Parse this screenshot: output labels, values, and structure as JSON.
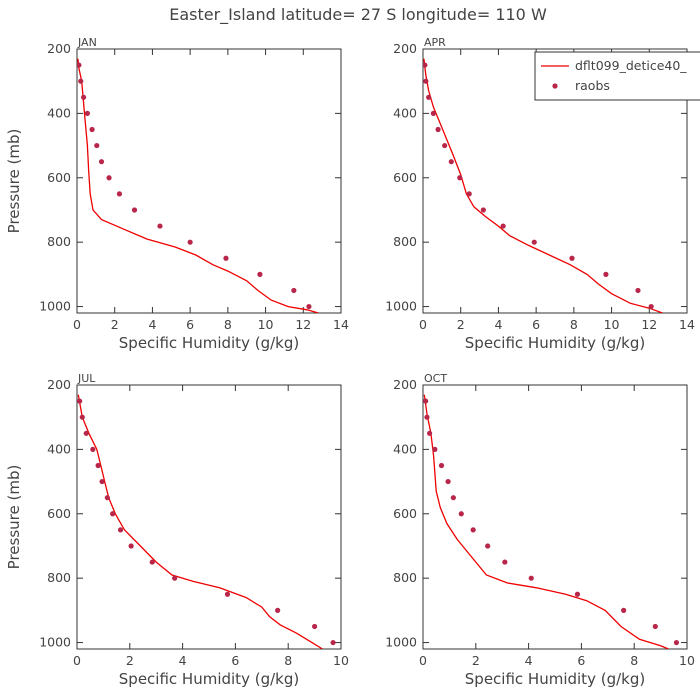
{
  "figure": {
    "title": "Easter_Island  latitude= 27 S longitude= 110 W",
    "colors": {
      "model_line": "#ee0000",
      "obs_points": "#b8264a",
      "axes": "#333333",
      "text": "#444444"
    }
  },
  "chart_data": [
    {
      "type": "line",
      "panel": "JAN",
      "title": "JAN",
      "xlabel": "Specific Humidity (g/kg)",
      "ylabel": "Pressure (mb)",
      "xlim": [
        0,
        14
      ],
      "ylim": [
        200,
        1020
      ],
      "y_inverted": true,
      "xticks": [
        0,
        2,
        4,
        6,
        8,
        10,
        12,
        14
      ],
      "yticks": [
        200,
        400,
        600,
        800,
        1000
      ],
      "legend": null,
      "series": [
        {
          "name": "dflt099_detice40_",
          "kind": "line",
          "x": [
            0.05,
            0.1,
            0.25,
            0.4,
            0.55,
            0.62,
            0.7,
            0.85,
            1.3,
            2.5,
            3.7,
            5.2,
            6.3,
            7.2,
            8.0,
            9.0,
            9.6,
            10.3,
            11.2,
            12.2,
            12.8
          ],
          "y": [
            230,
            260,
            300,
            400,
            500,
            580,
            650,
            700,
            730,
            760,
            790,
            815,
            840,
            870,
            890,
            920,
            950,
            980,
            1000,
            1010,
            1020
          ]
        },
        {
          "name": "raobs",
          "kind": "points",
          "x": [
            0.1,
            0.2,
            0.35,
            0.55,
            0.8,
            1.05,
            1.3,
            1.7,
            2.25,
            3.05,
            4.4,
            6.0,
            7.9,
            9.7,
            11.5,
            12.3
          ],
          "y": [
            250,
            300,
            350,
            400,
            450,
            500,
            550,
            600,
            650,
            700,
            750,
            800,
            850,
            900,
            950,
            1000
          ]
        }
      ]
    },
    {
      "type": "line",
      "panel": "APR",
      "title": "APR",
      "xlabel": "Specific Humidity (g/kg)",
      "ylabel": "",
      "xlim": [
        0,
        14
      ],
      "ylim": [
        200,
        1020
      ],
      "y_inverted": true,
      "xticks": [
        0,
        2,
        4,
        6,
        8,
        10,
        12,
        14
      ],
      "yticks": [
        200,
        400,
        600,
        800,
        1000
      ],
      "legend": {
        "position": "top-right",
        "entries": [
          "dflt099_detice40_",
          "raobs"
        ]
      },
      "series": [
        {
          "name": "dflt099_detice40_",
          "kind": "line",
          "x": [
            0.05,
            0.15,
            0.3,
            0.55,
            0.9,
            1.25,
            1.6,
            2.0,
            2.3,
            2.7,
            3.3,
            4.0,
            4.6,
            5.6,
            6.7,
            7.8,
            8.7,
            9.3,
            10.0,
            11.0,
            12.0,
            12.7
          ],
          "y": [
            230,
            280,
            330,
            380,
            430,
            480,
            530,
            590,
            650,
            690,
            720,
            750,
            780,
            810,
            840,
            870,
            900,
            930,
            960,
            990,
            1005,
            1020
          ]
        },
        {
          "name": "raobs",
          "kind": "points",
          "x": [
            0.1,
            0.15,
            0.3,
            0.55,
            0.8,
            1.15,
            1.5,
            1.95,
            2.45,
            3.2,
            4.25,
            5.9,
            7.9,
            9.7,
            11.4,
            12.1
          ],
          "y": [
            250,
            300,
            350,
            400,
            450,
            500,
            550,
            600,
            650,
            700,
            750,
            800,
            850,
            900,
            950,
            1000
          ]
        }
      ]
    },
    {
      "type": "line",
      "panel": "JUL",
      "title": "JUL",
      "xlabel": "Specific Humidity (g/kg)",
      "ylabel": "Pressure (mb)",
      "xlim": [
        0,
        10
      ],
      "ylim": [
        200,
        1020
      ],
      "y_inverted": true,
      "xticks": [
        0,
        2,
        4,
        6,
        8,
        10
      ],
      "yticks": [
        200,
        400,
        600,
        800,
        1000
      ],
      "legend": null,
      "series": [
        {
          "name": "dflt099_detice40_",
          "kind": "line",
          "x": [
            0.05,
            0.2,
            0.45,
            0.75,
            0.9,
            1.05,
            1.2,
            1.45,
            1.8,
            2.4,
            3.0,
            3.6,
            4.4,
            5.4,
            6.4,
            7.0,
            7.3,
            7.7,
            8.3,
            8.9,
            9.3
          ],
          "y": [
            230,
            300,
            350,
            400,
            450,
            500,
            550,
            600,
            650,
            700,
            750,
            790,
            810,
            830,
            860,
            890,
            920,
            945,
            970,
            1000,
            1020
          ]
        },
        {
          "name": "raobs",
          "kind": "points",
          "x": [
            0.1,
            0.2,
            0.35,
            0.6,
            0.8,
            0.95,
            1.15,
            1.35,
            1.65,
            2.05,
            2.85,
            3.7,
            5.7,
            7.6,
            9.0,
            9.7
          ],
          "y": [
            250,
            300,
            350,
            400,
            450,
            500,
            550,
            600,
            650,
            700,
            750,
            800,
            850,
            900,
            950,
            1000
          ]
        }
      ]
    },
    {
      "type": "line",
      "panel": "OCT",
      "title": "OCT",
      "xlabel": "Specific Humidity (g/kg)",
      "ylabel": "",
      "xlim": [
        0,
        10
      ],
      "ylim": [
        200,
        1020
      ],
      "y_inverted": true,
      "xticks": [
        0,
        2,
        4,
        6,
        8,
        10
      ],
      "yticks": [
        200,
        400,
        600,
        800,
        1000
      ],
      "legend": null,
      "series": [
        {
          "name": "dflt099_detice40_",
          "kind": "line",
          "x": [
            0.05,
            0.15,
            0.3,
            0.4,
            0.5,
            0.65,
            0.9,
            1.3,
            1.8,
            2.4,
            3.2,
            4.3,
            5.4,
            6.2,
            6.9,
            7.5,
            8.2,
            9.0,
            9.3
          ],
          "y": [
            230,
            290,
            350,
            420,
            530,
            580,
            630,
            680,
            730,
            790,
            815,
            830,
            850,
            870,
            900,
            950,
            990,
            1010,
            1020
          ]
        },
        {
          "name": "raobs",
          "kind": "points",
          "x": [
            0.1,
            0.15,
            0.25,
            0.45,
            0.7,
            0.95,
            1.15,
            1.45,
            1.9,
            2.45,
            3.1,
            4.1,
            5.85,
            7.6,
            8.8,
            9.6
          ],
          "y": [
            250,
            300,
            350,
            400,
            450,
            500,
            550,
            600,
            650,
            700,
            750,
            800,
            850,
            900,
            950,
            1000
          ]
        }
      ]
    }
  ]
}
